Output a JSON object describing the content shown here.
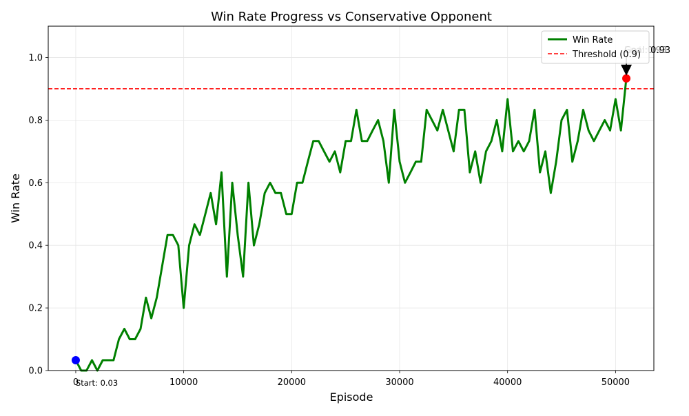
{
  "chart_data": {
    "type": "line",
    "title": "Win Rate Progress vs Conservative Opponent",
    "xlabel": "Episode",
    "ylabel": "Win Rate",
    "xlim": [
      -2550,
      53550
    ],
    "ylim": [
      0.0,
      1.1
    ],
    "x_ticks": [
      0,
      10000,
      20000,
      30000,
      40000,
      50000
    ],
    "x_tick_labels": [
      "0",
      "10000",
      "20000",
      "30000",
      "40000",
      "50000"
    ],
    "y_ticks": [
      0.0,
      0.2,
      0.4,
      0.6,
      0.8,
      1.0
    ],
    "y_tick_labels": [
      "0.0",
      "0.2",
      "0.4",
      "0.6",
      "0.8",
      "1.0"
    ],
    "grid": true,
    "legend_position": "top-right",
    "colors": {
      "line": "#008000",
      "threshold": "#ff0000",
      "start_marker": "#0000ff",
      "end_marker": "#ff0000"
    },
    "series": [
      {
        "name": "Win Rate",
        "x": [
          0,
          500,
          1000,
          1500,
          2000,
          2500,
          3000,
          3500,
          4000,
          4500,
          5000,
          5500,
          6000,
          6500,
          7000,
          7500,
          8000,
          8500,
          9000,
          9500,
          10000,
          10500,
          11000,
          11500,
          12000,
          12500,
          13000,
          13500,
          14000,
          14500,
          15000,
          15500,
          16000,
          16500,
          17000,
          17500,
          18000,
          18500,
          19000,
          19500,
          20000,
          20500,
          21000,
          21500,
          22000,
          22500,
          23000,
          23500,
          24000,
          24500,
          25000,
          25500,
          26000,
          26500,
          27000,
          27500,
          28000,
          28500,
          29000,
          29500,
          30000,
          30500,
          31000,
          31500,
          32000,
          32500,
          33000,
          33500,
          34000,
          34500,
          35000,
          35500,
          36000,
          36500,
          37000,
          37500,
          38000,
          38500,
          39000,
          39500,
          40000,
          40500,
          41000,
          41500,
          42000,
          42500,
          43000,
          43500,
          44000,
          44500,
          45000,
          45500,
          46000,
          46500,
          47000,
          47500,
          48000,
          48500,
          49000,
          49500,
          50000,
          50500,
          51000
        ],
        "y": [
          0.033,
          0.0,
          0.0,
          0.033,
          0.0,
          0.033,
          0.033,
          0.033,
          0.1,
          0.133,
          0.1,
          0.1,
          0.133,
          0.233,
          0.167,
          0.233,
          0.333,
          0.433,
          0.433,
          0.4,
          0.2,
          0.4,
          0.467,
          0.433,
          0.5,
          0.567,
          0.467,
          0.633,
          0.3,
          0.6,
          0.433,
          0.3,
          0.6,
          0.4,
          0.467,
          0.567,
          0.6,
          0.567,
          0.567,
          0.5,
          0.5,
          0.6,
          0.6,
          0.667,
          0.733,
          0.733,
          0.7,
          0.667,
          0.7,
          0.633,
          0.733,
          0.733,
          0.833,
          0.733,
          0.733,
          0.767,
          0.8,
          0.733,
          0.6,
          0.833,
          0.667,
          0.6,
          0.633,
          0.667,
          0.667,
          0.833,
          0.8,
          0.767,
          0.833,
          0.767,
          0.7,
          0.833,
          0.833,
          0.633,
          0.7,
          0.6,
          0.7,
          0.733,
          0.8,
          0.7,
          0.867,
          0.7,
          0.733,
          0.7,
          0.733,
          0.833,
          0.633,
          0.7,
          0.567,
          0.667,
          0.8,
          0.833,
          0.667,
          0.733,
          0.833,
          0.767,
          0.733,
          0.767,
          0.8,
          0.767,
          0.867,
          0.767,
          0.933
        ]
      },
      {
        "name": "Threshold (0.9)",
        "y": 0.9
      }
    ],
    "annotations": [
      {
        "text": "Start: 0.03",
        "x": 0,
        "y": 0.033
      },
      {
        "text": "Goal: 0.93",
        "overlap_text": "End: 0.93",
        "x": 51000,
        "y": 0.933
      }
    ]
  }
}
